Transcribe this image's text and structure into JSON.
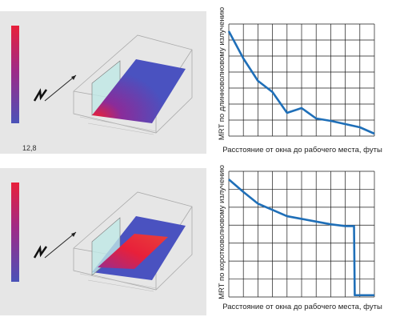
{
  "scale_value": "12,8",
  "colors": {
    "line": "#1f6fb8",
    "grid": "#1a1a1a",
    "panel_bg": "#e6e6e6",
    "scale_top": "#e8203a",
    "scale_bottom": "#4a52b8"
  },
  "chart_data": [
    {
      "type": "line",
      "ylabel": "MRT по длинноволновому излучению",
      "xlabel": "Расстояние от окна до рабочего места, футы",
      "xlim": [
        0,
        10
      ],
      "ylim": [
        0,
        7
      ],
      "grid": true,
      "series": [
        {
          "x": [
            0,
            1,
            2,
            3,
            4,
            5,
            6,
            7,
            8,
            9,
            10
          ],
          "y": [
            6.55,
            4.85,
            3.45,
            2.75,
            1.45,
            1.75,
            1.1,
            0.95,
            0.75,
            0.55,
            0.15
          ]
        }
      ]
    },
    {
      "type": "line",
      "ylabel": "MRT по коротковолновому излучению",
      "xlabel": "Расстояние от окна до рабочего места, футы",
      "xlim": [
        0,
        10
      ],
      "ylim": [
        0,
        7
      ],
      "grid": true,
      "series": [
        {
          "x": [
            0,
            1,
            2,
            3,
            4,
            5,
            6,
            7,
            8,
            8.6,
            8.65,
            10
          ],
          "y": [
            6.55,
            5.85,
            5.2,
            4.85,
            4.5,
            4.35,
            4.2,
            4.05,
            3.95,
            3.95,
            0.1,
            0.1
          ]
        }
      ]
    }
  ]
}
